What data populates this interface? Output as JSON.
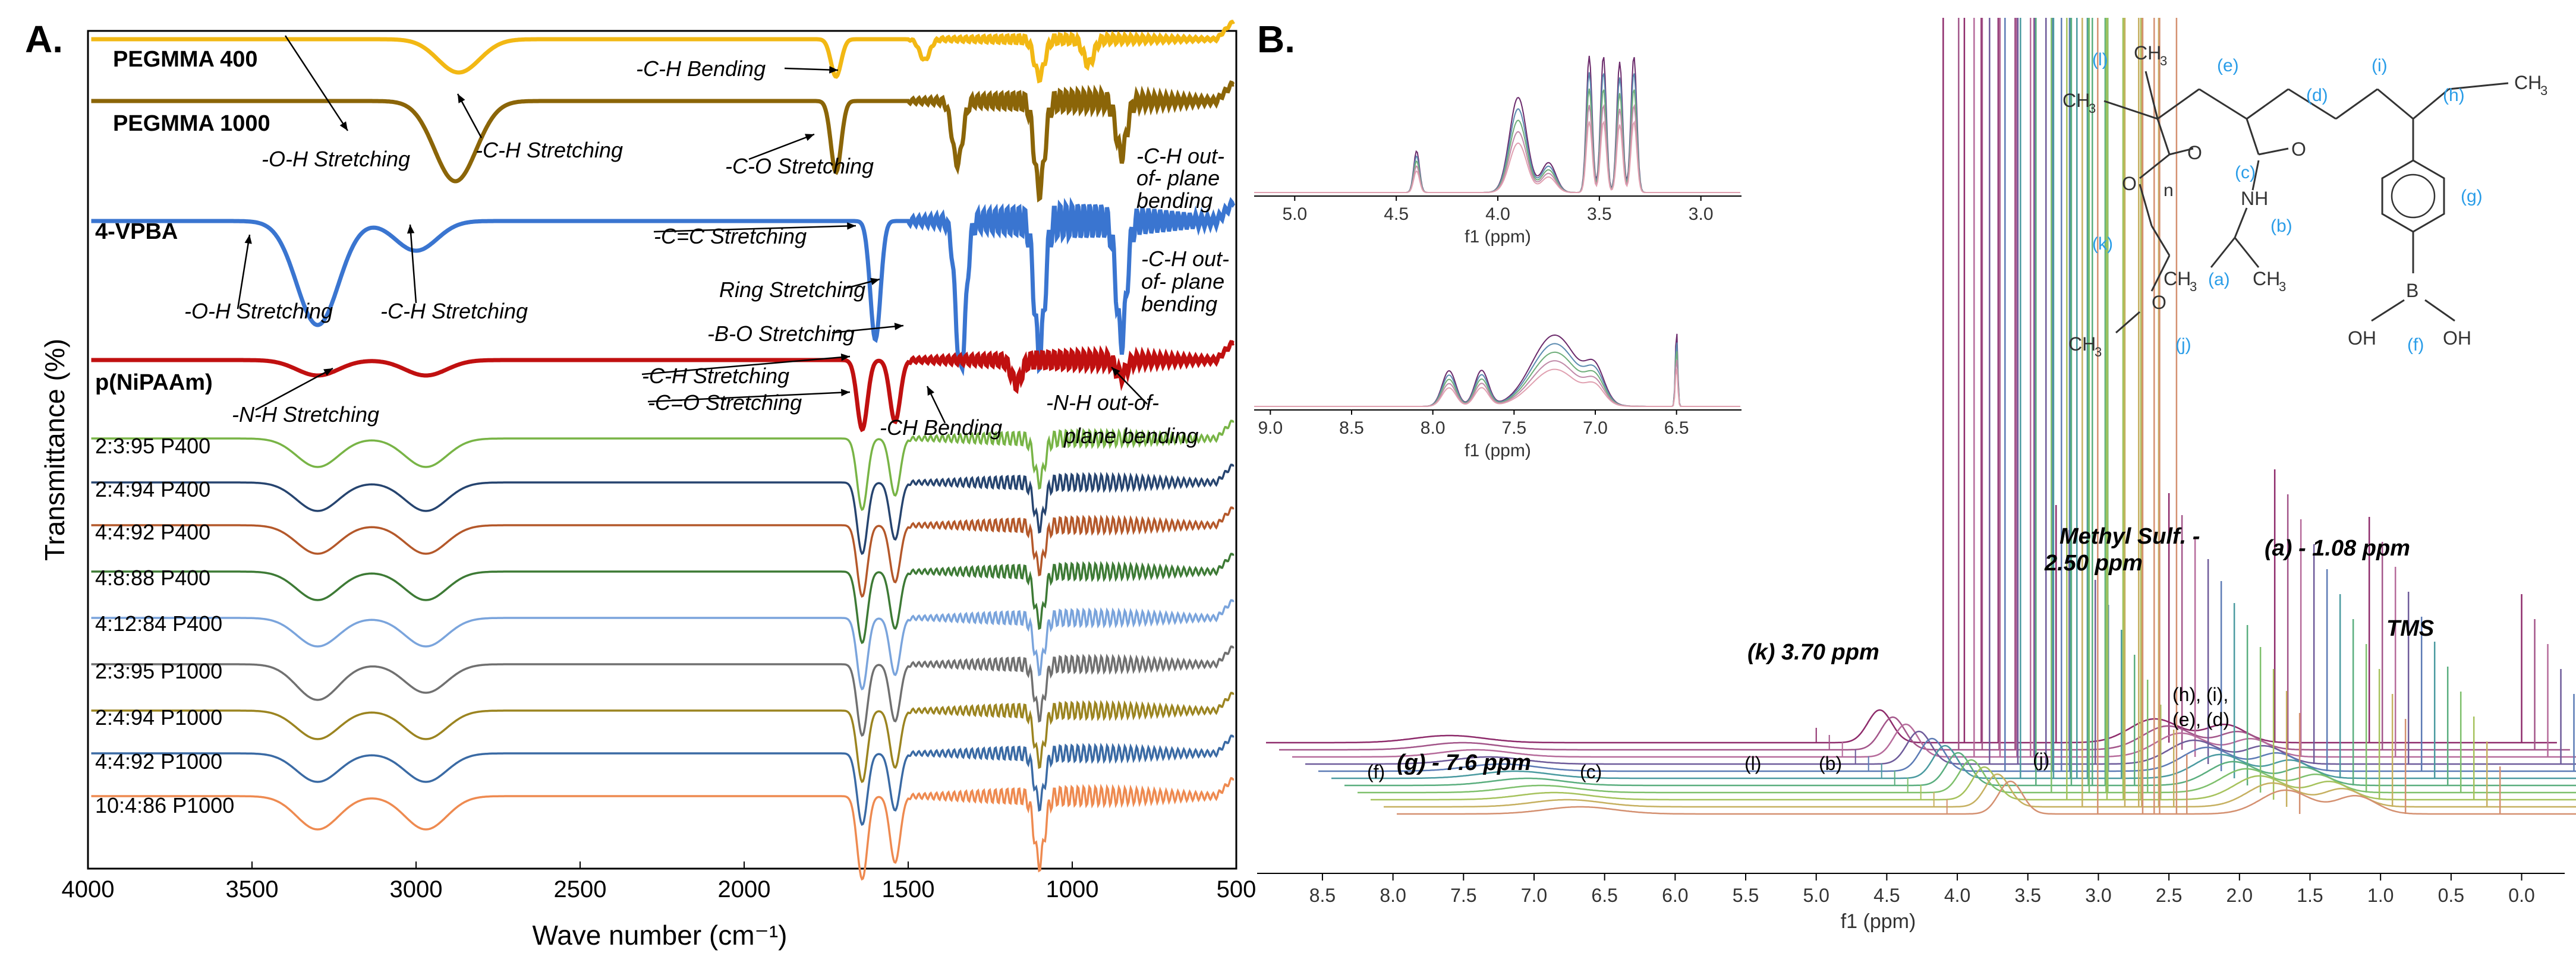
{
  "panelA": {
    "label": "A.",
    "xlabel": "Wave number (cm⁻¹)",
    "ylabel": "Transmittance (%)",
    "xticks": [
      "4000",
      "3500",
      "3000",
      "2500",
      "2000",
      "1500",
      "1000",
      "500"
    ],
    "series_labels": [
      {
        "text": "PEGMMA 400",
        "color": "#f2b814"
      },
      {
        "text": "PEGMMA 1000",
        "color": "#8b6508"
      },
      {
        "text": "4-VPBA",
        "color": "#3a75d0"
      },
      {
        "text": "p(NiPAAm)",
        "color": "#c01010"
      },
      {
        "text": "2:3:95 P400",
        "color": "#78b446"
      },
      {
        "text": "2:4:94 P400",
        "color": "#26446f"
      },
      {
        "text": "4:4:92 P400",
        "color": "#b4582a"
      },
      {
        "text": "4:8:88 P400",
        "color": "#3d7a35"
      },
      {
        "text": "4:12:84 P400",
        "color": "#7aa4dc"
      },
      {
        "text": "2:3:95 P1000",
        "color": "#707070"
      },
      {
        "text": "2:4:94 P1000",
        "color": "#9b8420"
      },
      {
        "text": "4:4:92 P1000",
        "color": "#3a6aa4"
      },
      {
        "text": "10:4:86 P1000",
        "color": "#ee8a50"
      }
    ],
    "annotations": [
      "-C-H Bending",
      "-O-H Stretching",
      "-C-H Stretching",
      "-C-O Stretching",
      "-C-H out-",
      "of- plane",
      "bending",
      "-C=C Stretching",
      "Ring Stretching",
      "-B-O Stretching",
      "-O-H Stretching",
      "-C-H Stretching",
      "-N-H Stretching",
      "-C-H Stretching",
      "-C=O Stretching",
      "-CH Bending",
      "-N-H out-of-",
      "plane bending",
      "-C-H out-",
      "of- plane",
      "bending"
    ]
  },
  "panelB": {
    "label": "B.",
    "xlabel": "f1 (ppm)",
    "xticks": [
      "8.5",
      "8.0",
      "7.5",
      "7.0",
      "6.5",
      "6.0",
      "5.5",
      "5.0",
      "4.5",
      "4.0",
      "3.5",
      "3.0",
      "2.5",
      "2.0",
      "1.5",
      "1.0",
      "0.5",
      "0.0"
    ],
    "inset1_ticks": [
      "5.0",
      "4.5",
      "4.0",
      "3.5",
      "3.0"
    ],
    "inset2_ticks": [
      "9.0",
      "8.5",
      "8.0",
      "7.5",
      "7.0",
      "6.5"
    ],
    "inset_xlabel": "f1 (ppm)",
    "peak_labels": [
      "Methyl Sulf. -",
      "2.50 ppm",
      "(a)  -  1.08 ppm",
      "TMS",
      "(k) 3.70 ppm",
      "(g)  -  7.6 ppm",
      "(f)",
      "(c)",
      "(l)",
      "(b)",
      "(j)",
      "(h), (i),",
      "(e), (d)"
    ],
    "structure_labels": {
      "l": "(l)",
      "e": "(e)",
      "d": "(d)",
      "i": "(i)",
      "h": "(h)",
      "c": "(c)",
      "b": "(b)",
      "g": "(g)",
      "k": "(k)",
      "a": "(a)",
      "j": "(j)",
      "f": "(f)",
      "n": "n",
      "ch3": "CH",
      "sub3": "3",
      "O": "O",
      "NH": "NH",
      "B": "B",
      "OH": "OH"
    },
    "trace_colors": [
      "#8e2b6b",
      "#a3568a",
      "#b66b9b",
      "#6e5b9a",
      "#5c7bb5",
      "#4a9aa0",
      "#5aae7e",
      "#7ec06c",
      "#a6c25c",
      "#c6b060",
      "#d49070"
    ]
  },
  "chart_data": [
    {
      "type": "line",
      "panel": "A",
      "xlabel": "Wave number (cm⁻¹)",
      "ylabel": "Transmittance (%)",
      "xlim": [
        4000,
        500
      ],
      "series": [
        {
          "name": "PEGMMA 400",
          "dips": [
            [
              2870,
              0.8
            ],
            [
              1720,
              0.9
            ],
            [
              1450,
              0.5
            ],
            [
              1100,
              0.9
            ],
            [
              950,
              0.6
            ]
          ]
        },
        {
          "name": "PEGMMA 1000",
          "dips": [
            [
              2880,
              0.9
            ],
            [
              1720,
              0.8
            ],
            [
              1350,
              0.7
            ],
            [
              1100,
              1.0
            ],
            [
              850,
              0.6
            ]
          ]
        },
        {
          "name": "4-VPBA",
          "dips": [
            [
              3300,
              0.7
            ],
            [
              3000,
              0.2
            ],
            [
              1600,
              0.8
            ],
            [
              1340,
              1.0
            ],
            [
              1100,
              0.9
            ],
            [
              850,
              0.8
            ]
          ]
        },
        {
          "name": "p(NiPAAm)",
          "dips": [
            [
              3300,
              0.2
            ],
            [
              2970,
              0.2
            ],
            [
              1640,
              0.9
            ],
            [
              1540,
              0.8
            ],
            [
              1170,
              0.3
            ],
            [
              850,
              0.2
            ]
          ]
        },
        {
          "name": "2:3:95 P400",
          "dips": [
            [
              3300,
              0.4
            ],
            [
              2970,
              0.4
            ],
            [
              1640,
              1.0
            ],
            [
              1540,
              0.8
            ],
            [
              1100,
              0.6
            ]
          ]
        },
        {
          "name": "2:4:94 P400",
          "dips": [
            [
              3300,
              0.4
            ],
            [
              2970,
              0.4
            ],
            [
              1640,
              1.0
            ],
            [
              1540,
              0.8
            ],
            [
              1100,
              0.6
            ]
          ]
        },
        {
          "name": "4:4:92 P400",
          "dips": [
            [
              3300,
              0.4
            ],
            [
              2970,
              0.4
            ],
            [
              1640,
              1.0
            ],
            [
              1540,
              0.8
            ],
            [
              1100,
              0.6
            ]
          ]
        },
        {
          "name": "4:8:88 P400",
          "dips": [
            [
              3300,
              0.4
            ],
            [
              2970,
              0.4
            ],
            [
              1640,
              1.0
            ],
            [
              1540,
              0.8
            ],
            [
              1100,
              0.7
            ]
          ]
        },
        {
          "name": "4:12:84 P400",
          "dips": [
            [
              3300,
              0.4
            ],
            [
              2970,
              0.4
            ],
            [
              1640,
              1.0
            ],
            [
              1540,
              0.8
            ],
            [
              1100,
              0.7
            ]
          ]
        },
        {
          "name": "2:3:95 P1000",
          "dips": [
            [
              3300,
              0.5
            ],
            [
              2970,
              0.4
            ],
            [
              1640,
              1.0
            ],
            [
              1540,
              0.8
            ],
            [
              1100,
              0.7
            ]
          ]
        },
        {
          "name": "2:4:94 P1000",
          "dips": [
            [
              3300,
              0.4
            ],
            [
              2970,
              0.4
            ],
            [
              1640,
              1.0
            ],
            [
              1540,
              0.8
            ],
            [
              1100,
              0.7
            ]
          ]
        },
        {
          "name": "4:4:92 P1000",
          "dips": [
            [
              3300,
              0.4
            ],
            [
              2970,
              0.4
            ],
            [
              1640,
              1.0
            ],
            [
              1540,
              0.8
            ],
            [
              1100,
              0.7
            ]
          ]
        },
        {
          "name": "10:4:86 P1000",
          "dips": [
            [
              3300,
              0.4
            ],
            [
              2970,
              0.4
            ],
            [
              1640,
              1.0
            ],
            [
              1540,
              0.8
            ],
            [
              1100,
              0.8
            ]
          ]
        }
      ]
    },
    {
      "type": "line",
      "panel": "B",
      "xlabel": "f1 (ppm)",
      "xlim": [
        8.9,
        -0.2
      ],
      "peaks_ppm": [
        7.6,
        4.55,
        4.1,
        3.7,
        3.3,
        2.5,
        2.1,
        1.75,
        1.08,
        0.0
      ]
    }
  ]
}
